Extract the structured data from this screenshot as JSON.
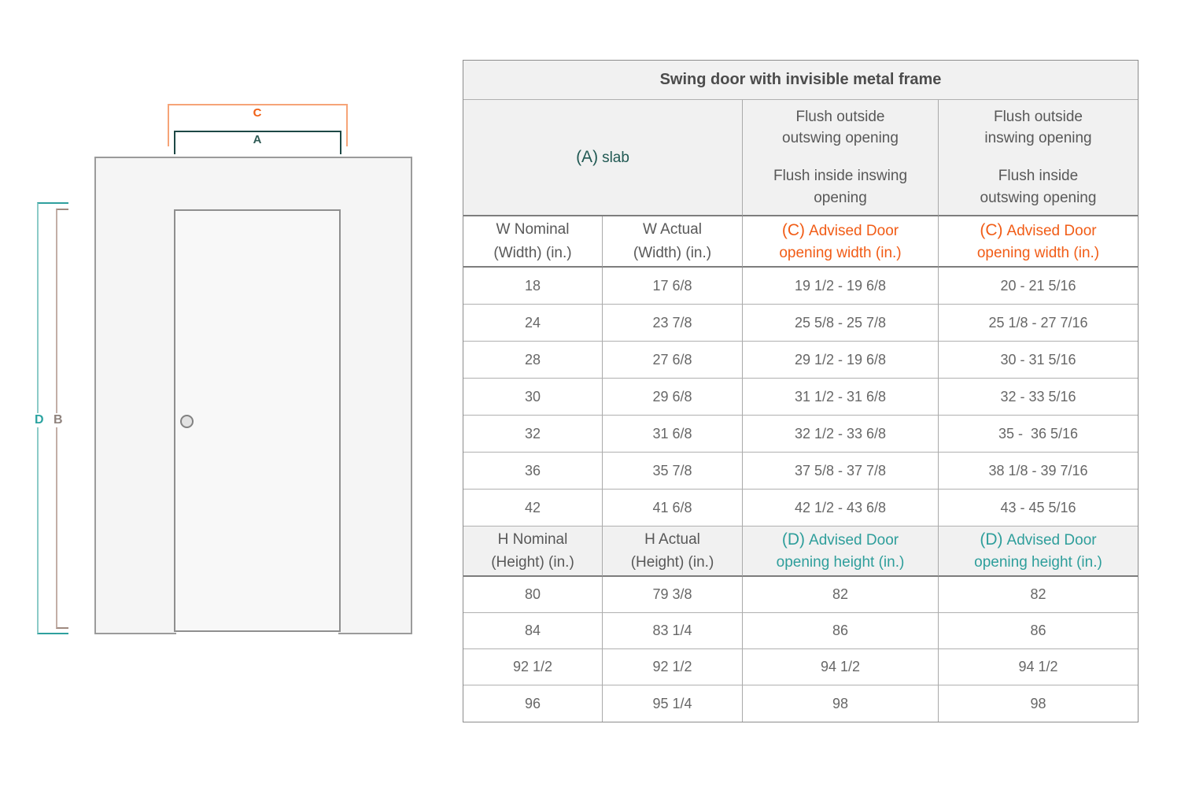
{
  "colors": {
    "orange": "#f15c16",
    "orange_bracket": "#f6a478",
    "teal_dark": "#215953",
    "teal": "#2e9e9b",
    "taupe": "#9f8a80",
    "text_gray": "#585858"
  },
  "diagram": {
    "label_a": "A",
    "label_b": "B",
    "label_c": "C",
    "label_d": "D"
  },
  "table": {
    "title": "Swing door with invisible metal frame",
    "slab_header": {
      "prefix": "(A)",
      "text": "slab"
    },
    "flush_col3": [
      "Flush outside\noutswing opening",
      "Flush inside inswing\nopening"
    ],
    "flush_col4": [
      "Flush outside\ninswing opening",
      "Flush inside\noutswing opening"
    ],
    "w_header": {
      "nominal": "W Nominal\n(Width) (in.)",
      "actual": "W Actual\n(Width) (in.)",
      "advised_prefix": "(C)",
      "advised_rest": "Advised Door\nopening width (in.)"
    },
    "w_rows": [
      [
        "18",
        "17 6/8",
        "19 1/2 - 19 6/8",
        "20 - 21 5/16"
      ],
      [
        "24",
        "23 7/8",
        "25 5/8 - 25 7/8",
        "25 1/8 - 27 7/16"
      ],
      [
        "28",
        "27 6/8",
        "29 1/2 - 19 6/8",
        "30 - 31 5/16"
      ],
      [
        "30",
        "29 6/8",
        "31 1/2 - 31 6/8",
        "32 - 33 5/16"
      ],
      [
        "32",
        "31 6/8",
        "32 1/2 - 33 6/8",
        "35 -  36 5/16"
      ],
      [
        "36",
        "35 7/8",
        "37 5/8 - 37 7/8",
        "38 1/8 - 39 7/16"
      ],
      [
        "42",
        "41 6/8",
        "42 1/2 - 43 6/8",
        "43 - 45 5/16"
      ]
    ],
    "h_header": {
      "nominal": "H Nominal\n(Height) (in.)",
      "actual": "H Actual\n(Height) (in.)",
      "advised_prefix": "(D)",
      "advised_rest": "Advised Door\nopening height (in.)"
    },
    "h_rows": [
      [
        "80",
        "79 3/8",
        "82",
        "82"
      ],
      [
        "84",
        "83 1/4",
        "86",
        "86"
      ],
      [
        "92 1/2",
        "92 1/2",
        "94 1/2",
        "94 1/2"
      ],
      [
        "96",
        "95 1/4",
        "98",
        "98"
      ]
    ]
  }
}
